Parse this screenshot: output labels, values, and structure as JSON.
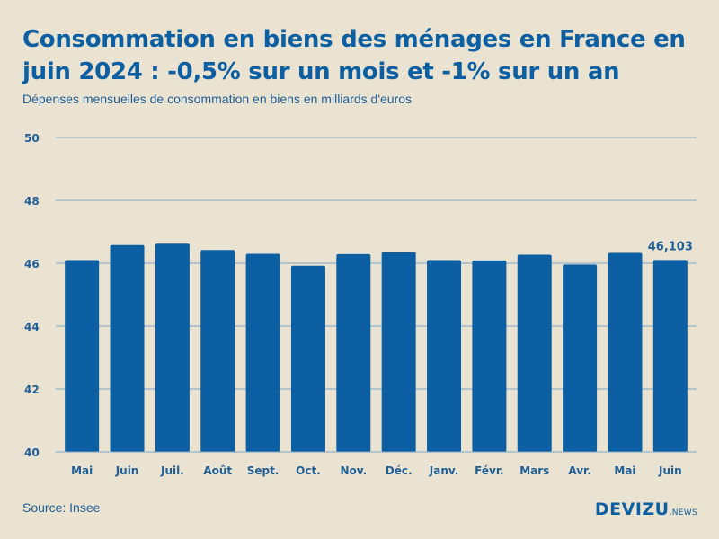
{
  "chart_data": {
    "type": "bar",
    "title": "Consommation en biens des ménages en France en juin 2024 : -0,5% sur un mois et -1% sur un an",
    "subtitle": "Dépenses mensuelles de consommation en biens en milliards d'euros",
    "xlabel": "",
    "ylabel": "",
    "ylim": [
      40,
      50
    ],
    "yticks": [
      40,
      42,
      44,
      46,
      48,
      50
    ],
    "grid": true,
    "categories": [
      "Mai",
      "Juin",
      "Juil.",
      "Août",
      "Sept.",
      "Oct.",
      "Nov.",
      "Déc.",
      "Janv.",
      "Févr.",
      "Mars",
      "Avr.",
      "Mai",
      "Juin"
    ],
    "values": [
      46.1,
      46.58,
      46.62,
      46.42,
      46.3,
      45.92,
      46.29,
      46.36,
      46.1,
      46.09,
      46.27,
      45.96,
      46.33,
      46.103
    ],
    "annotations": [
      {
        "index": 13,
        "text": "46,103"
      }
    ]
  },
  "footer": {
    "source": "Source: Insee",
    "brand": "DEVIZU",
    "brand_suffix": ".NEWS"
  },
  "colors": {
    "bar": "#0b5fa2",
    "grid": "#7ea6c8",
    "axis_text": "#1f5e96",
    "background": "#ebe3d1"
  }
}
